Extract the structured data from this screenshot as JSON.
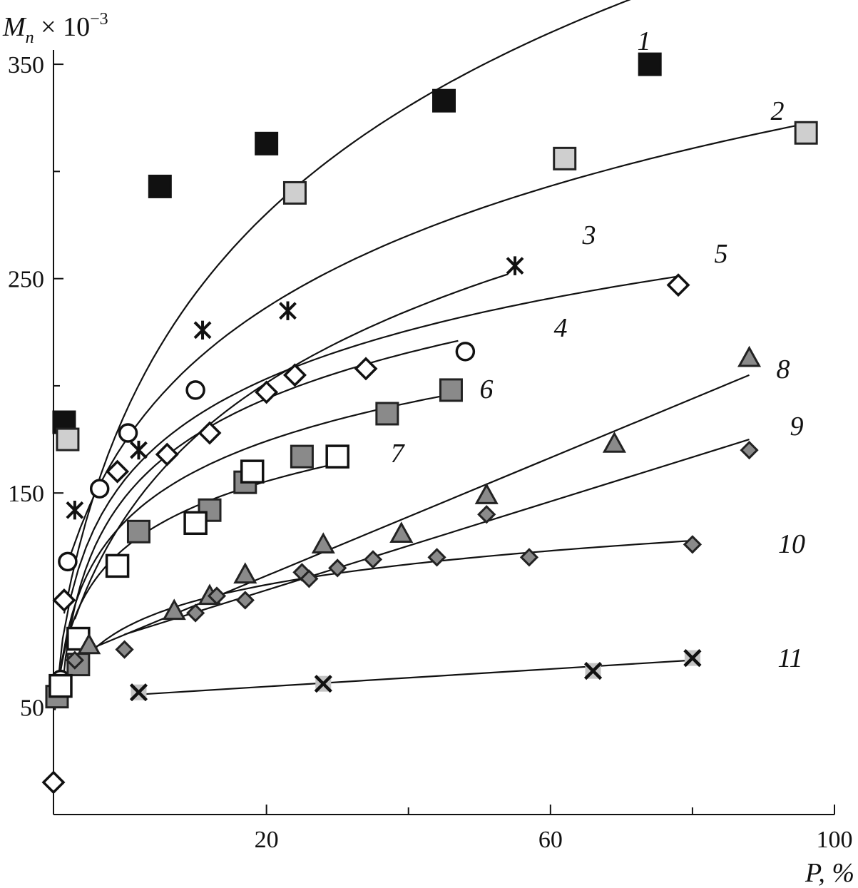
{
  "chart_data": {
    "type": "scatter",
    "title": "",
    "xlabel": "P, %",
    "ylabel": "M_n × 10^-3",
    "ylabel_parts": {
      "main": "M",
      "sub": "n",
      "times": " × 10",
      "exp": "−3"
    },
    "xlim": [
      -10,
      100
    ],
    "ylim": [
      0,
      370
    ],
    "xticks": [
      20,
      60,
      100
    ],
    "xticks_minor": [
      40,
      80
    ],
    "yticks": [
      50,
      150,
      250,
      350
    ],
    "yticks_minor": [
      100,
      200,
      300
    ],
    "grid": false,
    "legend": "none",
    "series": [
      {
        "name": "1",
        "marker": "square",
        "fill": "dark",
        "points": [
          [
            -8.5,
            183
          ],
          [
            5,
            293
          ],
          [
            20,
            313
          ],
          [
            45,
            333
          ],
          [
            74,
            350
          ]
        ],
        "fit": {
          "kind": "log",
          "x0": -15,
          "a": -113.6,
          "b": 110.8,
          "xmin": -8.5,
          "xmax": 74
        }
      },
      {
        "name": "2",
        "marker": "square",
        "fill": "light",
        "points": [
          [
            -8,
            175
          ],
          [
            24,
            290
          ],
          [
            62,
            306
          ],
          [
            96,
            318
          ]
        ],
        "fit": {
          "kind": "log",
          "x0": -15,
          "a": -27.6,
          "b": 74.3,
          "xmin": -7.5,
          "xmax": 96
        }
      },
      {
        "name": "3",
        "marker": "star",
        "points": [
          [
            -7,
            142
          ],
          [
            2,
            170
          ],
          [
            11,
            226
          ],
          [
            23,
            235
          ],
          [
            55,
            256
          ]
        ],
        "fit": {
          "kind": "log",
          "x0": -15,
          "a": -64.2,
          "b": 74.7,
          "xmin": -7,
          "xmax": 54
        }
      },
      {
        "name": "4",
        "marker": "circle",
        "fill": "open",
        "points": [
          [
            -9,
            63
          ],
          [
            -8,
            118
          ],
          [
            -3.5,
            152
          ],
          [
            0.5,
            178
          ],
          [
            10,
            198
          ],
          [
            48,
            216
          ]
        ],
        "fit": {
          "kind": "log",
          "x0": -10,
          "a": 50.8,
          "b": 42.1,
          "xmin": -9,
          "xmax": 47
        }
      },
      {
        "name": "5",
        "marker": "diamond",
        "fill": "open",
        "points": [
          [
            -10,
            15
          ],
          [
            -8.5,
            100
          ],
          [
            -1,
            160
          ],
          [
            6,
            168
          ],
          [
            12,
            178
          ],
          [
            20,
            197
          ],
          [
            24,
            205
          ],
          [
            34,
            208
          ],
          [
            78,
            247
          ]
        ],
        "fit": {
          "kind": "log",
          "x0": -10.8,
          "a": 48.7,
          "b": 45.1,
          "xmin": -9.8,
          "xmax": 78
        }
      },
      {
        "name": "6",
        "marker": "square",
        "fill": "mid",
        "points": [
          [
            -9.5,
            55
          ],
          [
            -6.5,
            70
          ],
          [
            2,
            132
          ],
          [
            12,
            142
          ],
          [
            17,
            155
          ],
          [
            25,
            167
          ],
          [
            37,
            187
          ],
          [
            46,
            198
          ]
        ],
        "fit": {
          "kind": "log",
          "x0": -10.5,
          "a": 53.2,
          "b": 35.4,
          "xmin": -9.5,
          "xmax": 46
        }
      },
      {
        "name": "7",
        "marker": "square",
        "fill": "open",
        "points": [
          [
            -9,
            60
          ],
          [
            -6.5,
            82
          ],
          [
            -1,
            116
          ],
          [
            10,
            136
          ],
          [
            18,
            160
          ],
          [
            30,
            167
          ]
        ],
        "fit": {
          "kind": "log",
          "x0": -10.5,
          "a": 55.3,
          "b": 29.3,
          "xmin": -9,
          "xmax": 30
        }
      },
      {
        "name": "8",
        "marker": "triangle",
        "fill": "mid",
        "points": [
          [
            -5,
            79
          ],
          [
            7,
            95
          ],
          [
            12,
            102
          ],
          [
            17,
            112
          ],
          [
            28,
            126
          ],
          [
            39,
            131
          ],
          [
            51,
            149
          ],
          [
            69,
            173
          ],
          [
            88,
            213
          ]
        ],
        "fit": {
          "kind": "linear",
          "x1": -5,
          "y1": 77,
          "x2": 88,
          "y2": 205
        }
      },
      {
        "name": "9",
        "marker": "diamond",
        "fill": "mid",
        "points": [
          [
            0,
            77
          ],
          [
            10,
            94
          ],
          [
            13,
            102
          ],
          [
            17,
            100
          ],
          [
            25,
            113
          ],
          [
            35,
            119
          ],
          [
            51,
            140
          ],
          [
            88,
            170
          ]
        ],
        "fit": {
          "kind": "linear",
          "x1": 0,
          "y1": 84,
          "x2": 88,
          "y2": 175
        }
      },
      {
        "name": "10",
        "marker": "diamond",
        "fill": "mid",
        "points": [
          [
            -7,
            72
          ],
          [
            26,
            110
          ],
          [
            30,
            115
          ],
          [
            44,
            120
          ],
          [
            57,
            120
          ],
          [
            80,
            126
          ]
        ],
        "fit": {
          "kind": "log",
          "x0": -10.5,
          "a": 42.6,
          "b": 18.9,
          "xmin": -7,
          "xmax": 80
        }
      },
      {
        "name": "11",
        "marker": "xsquare",
        "fill": "light",
        "points": [
          [
            2,
            57
          ],
          [
            28,
            61
          ],
          [
            66,
            67
          ],
          [
            80,
            73
          ]
        ],
        "fit": {
          "kind": "linear",
          "x1": 2,
          "y1": 56,
          "x2": 80,
          "y2": 72
        }
      }
    ]
  }
}
